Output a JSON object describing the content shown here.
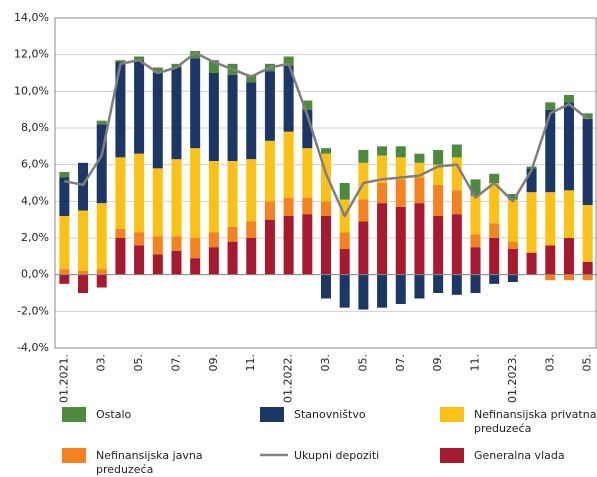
{
  "chart_data": {
    "type": "bar",
    "stacked": true,
    "categories": [
      "01.2021.",
      null,
      "03.",
      null,
      "05.",
      null,
      "07.",
      null,
      "09.",
      null,
      "11.",
      null,
      "01.2022.",
      null,
      "03.",
      null,
      "05.",
      null,
      "07.",
      null,
      "09.",
      null,
      "11.",
      null,
      "01.2023.",
      null,
      "03.",
      null,
      "05."
    ],
    "series": [
      {
        "name": "Generalna vlada",
        "color": "#a6192e",
        "values": [
          -0.5,
          -1.0,
          -0.7,
          2.0,
          1.6,
          1.1,
          1.3,
          0.9,
          1.5,
          1.8,
          2.0,
          3.0,
          3.2,
          3.3,
          3.2,
          1.4,
          2.9,
          3.9,
          3.7,
          3.9,
          3.2,
          3.3,
          1.5,
          2.0,
          1.4,
          1.2,
          1.6,
          2.0,
          0.7
        ]
      },
      {
        "name": "Nefinansijska javna preduzeća",
        "color": "#f58220",
        "values": [
          0.3,
          0.2,
          0.3,
          0.5,
          0.7,
          1.0,
          0.8,
          1.1,
          0.8,
          0.8,
          0.9,
          1.0,
          1.0,
          0.9,
          0.8,
          0.9,
          1.2,
          1.1,
          1.5,
          1.4,
          1.7,
          1.3,
          0.7,
          0.8,
          0.4,
          0.0,
          -0.3,
          -0.3,
          -0.3
        ]
      },
      {
        "name": "Nefinansijska privatna preduzeća",
        "color": "#fbc117",
        "values": [
          2.9,
          3.3,
          3.6,
          3.9,
          4.3,
          3.7,
          4.2,
          4.9,
          3.9,
          3.6,
          3.4,
          3.3,
          3.6,
          2.7,
          2.6,
          1.8,
          2.0,
          1.5,
          1.2,
          0.8,
          1.1,
          1.8,
          2.1,
          2.2,
          2.3,
          3.3,
          2.9,
          2.6,
          3.1
        ]
      },
      {
        "name": "Stanovništvo",
        "color": "#1c3766",
        "values": [
          2.1,
          2.6,
          4.3,
          5.2,
          5.1,
          5.2,
          5.0,
          4.9,
          4.8,
          4.7,
          4.2,
          3.8,
          3.6,
          2.1,
          -1.3,
          -1.8,
          -1.9,
          -1.8,
          -1.6,
          -1.3,
          -1.0,
          -1.1,
          -1.0,
          -0.5,
          -0.4,
          1.3,
          4.5,
          4.8,
          4.7
        ]
      },
      {
        "name": "Ostalo",
        "color": "#4e8a3e",
        "values": [
          0.3,
          0.0,
          0.2,
          0.1,
          0.2,
          0.3,
          0.2,
          0.4,
          0.7,
          0.6,
          0.4,
          0.4,
          0.5,
          0.5,
          0.3,
          0.9,
          0.7,
          0.5,
          0.6,
          0.5,
          0.8,
          0.7,
          0.9,
          0.5,
          0.3,
          0.1,
          0.4,
          0.4,
          0.3
        ]
      },
      {
        "name": "Ukupni depoziti",
        "type": "line",
        "color": "#7f7f7f",
        "values": [
          5.1,
          4.9,
          6.5,
          11.5,
          11.7,
          11.0,
          11.3,
          12.1,
          11.6,
          11.2,
          10.8,
          11.3,
          11.5,
          8.7,
          5.5,
          3.2,
          5.0,
          5.2,
          5.3,
          5.4,
          5.9,
          6.0,
          4.2,
          5.0,
          4.0,
          5.7,
          8.8,
          9.3,
          8.5
        ]
      }
    ],
    "ylim": [
      -4,
      14
    ],
    "yticks": [
      {
        "value": -4,
        "label": "-4,0%"
      },
      {
        "value": -2,
        "label": "-2,0%"
      },
      {
        "value": 0,
        "label": "0,0%"
      },
      {
        "value": 2,
        "label": "2,0%"
      },
      {
        "value": 4,
        "label": "4,0%"
      },
      {
        "value": 6,
        "label": "6,0%"
      },
      {
        "value": 8,
        "label": "8,0%"
      },
      {
        "value": 10,
        "label": "10,0%"
      },
      {
        "value": 12,
        "label": "12,0%"
      },
      {
        "value": 14,
        "label": "14,0%"
      }
    ],
    "grid": true
  }
}
